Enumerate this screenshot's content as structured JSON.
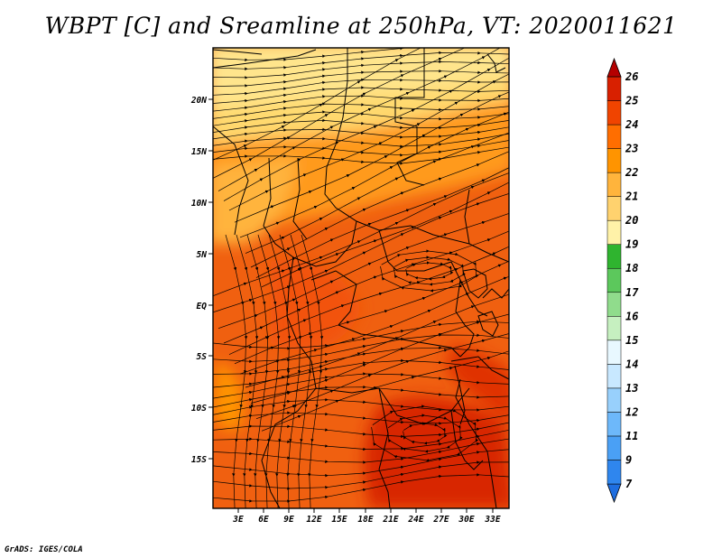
{
  "title": "WBPT [C] and Sreamline at 250hPa, VT: 2020011621",
  "credit": "GrADS: IGES/COLA",
  "map": {
    "lat_labels": [
      "20N",
      "15N",
      "10N",
      "5N",
      "EQ",
      "5S",
      "10S",
      "15S"
    ],
    "lon_labels": [
      "3E",
      "6E",
      "9E",
      "12E",
      "15E",
      "18E",
      "21E",
      "24E",
      "27E",
      "30E",
      "33E"
    ]
  },
  "colorbar": {
    "labels": [
      "7",
      "9",
      "11",
      "12",
      "13",
      "14",
      "15",
      "16",
      "17",
      "18",
      "19",
      "20",
      "21",
      "22",
      "23",
      "24",
      "25",
      "26"
    ],
    "colors": [
      "#1e6ee0",
      "#2f86ee",
      "#4aa0f5",
      "#6db8fa",
      "#98d0fc",
      "#c8e8ff",
      "#e8f8ff",
      "#c6f0c0",
      "#90dc8c",
      "#5cc85c",
      "#2fb42f",
      "#fff2a8",
      "#ffd26e",
      "#ffb43c",
      "#ff9400",
      "#ff6e00",
      "#f04400",
      "#d82000",
      "#b40000"
    ]
  },
  "chart_data": {
    "type": "heatmap",
    "variable": "WBPT [C]",
    "level": "250hPa",
    "valid_time": "2020011621",
    "colorbar_levels": [
      7,
      9,
      11,
      12,
      13,
      14,
      15,
      16,
      17,
      18,
      19,
      20,
      21,
      22,
      23,
      24,
      25,
      26
    ],
    "overlay": "streamlines"
  }
}
